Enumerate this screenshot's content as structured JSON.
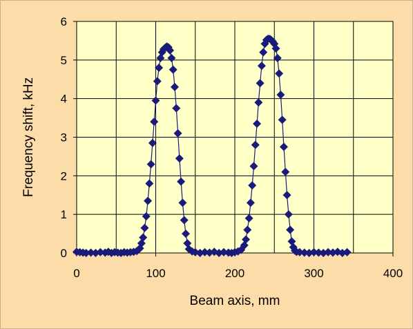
{
  "chart_data": {
    "type": "scatter",
    "xlabel": "Beam axis, mm",
    "ylabel": "Frequency shift, kHz",
    "xlim": [
      0,
      400
    ],
    "ylim": [
      0,
      6
    ],
    "xticks": [
      "0",
      "100",
      "200",
      "300",
      "400"
    ],
    "yticks": [
      "0",
      "1",
      "2",
      "3",
      "4",
      "5",
      "6"
    ],
    "grid": true,
    "legend": "none",
    "colors": {
      "frame_background": "#fcdca8",
      "plot_background": "#ffffc8",
      "marker": "#1a1a7a",
      "line": "#1a1a7a",
      "grid": "#000000"
    },
    "series": [
      {
        "marker": "diamond",
        "x": [
          0,
          4,
          8,
          12,
          18,
          24,
          30,
          36,
          40,
          44,
          48,
          52,
          56,
          60,
          64,
          68,
          72,
          76,
          80,
          82,
          84,
          86,
          88,
          90,
          92,
          94,
          96,
          98,
          100,
          102,
          104,
          106,
          108,
          110,
          112,
          114,
          116,
          118,
          120,
          122,
          124,
          126,
          128,
          130,
          132,
          134,
          136,
          138,
          140,
          142,
          146,
          150,
          156,
          162,
          168,
          174,
          180,
          186,
          192,
          196,
          200,
          204,
          208,
          212,
          214,
          216,
          218,
          220,
          222,
          224,
          226,
          228,
          230,
          232,
          234,
          236,
          238,
          240,
          242,
          244,
          246,
          248,
          250,
          252,
          254,
          256,
          258,
          260,
          262,
          264,
          266,
          268,
          270,
          272,
          274,
          276,
          278,
          282,
          288,
          294,
          300,
          306,
          312,
          318,
          324,
          330,
          336,
          342
        ],
        "y": [
          0.03,
          0.02,
          0.01,
          0.0,
          0.01,
          0.0,
          0.02,
          0.01,
          0.03,
          0.0,
          0.02,
          0.01,
          0.0,
          0.02,
          0.01,
          0.02,
          0.03,
          0.05,
          0.12,
          0.25,
          0.4,
          0.65,
          0.95,
          1.35,
          1.8,
          2.3,
          2.85,
          3.4,
          3.95,
          4.45,
          4.8,
          5.05,
          5.2,
          5.28,
          5.32,
          5.35,
          5.33,
          5.25,
          5.05,
          4.75,
          4.3,
          3.75,
          3.1,
          2.45,
          1.85,
          1.3,
          0.85,
          0.5,
          0.25,
          0.1,
          0.04,
          0.02,
          0.0,
          0.02,
          0.01,
          0.03,
          0.0,
          0.02,
          0.01,
          0.0,
          0.02,
          0.04,
          0.08,
          0.2,
          0.35,
          0.6,
          0.9,
          1.3,
          1.75,
          2.25,
          2.8,
          3.35,
          3.9,
          4.4,
          4.85,
          5.2,
          5.42,
          5.52,
          5.55,
          5.55,
          5.52,
          5.48,
          5.42,
          5.3,
          5.05,
          4.65,
          4.1,
          3.45,
          2.75,
          2.1,
          1.5,
          1.0,
          0.6,
          0.3,
          0.15,
          0.06,
          0.03,
          0.02,
          0.01,
          0.0,
          0.02,
          0.01,
          0.0,
          0.02,
          0.01,
          0.03,
          0.0,
          0.02
        ]
      }
    ]
  }
}
